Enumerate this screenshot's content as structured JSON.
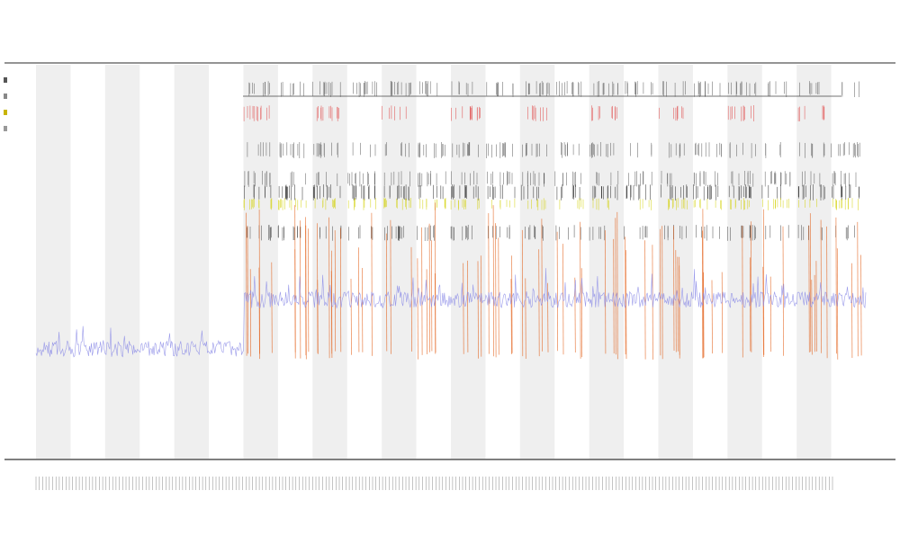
{
  "chart_data": {
    "type": "line",
    "title": "",
    "subtitle_lines": [
      "",
      ""
    ],
    "xlabel": "",
    "ylabel": "",
    "grid": false,
    "legend_position": "top-left",
    "legend": [
      {
        "label": "",
        "color": "#555555"
      },
      {
        "label": "",
        "color": "#888888"
      },
      {
        "label": "",
        "color": "#c8b400"
      },
      {
        "label": "",
        "color": "#999999"
      }
    ],
    "bands": {
      "count": 24,
      "shaded_every_other": true,
      "shade_color": "#efefef",
      "shaded_indices": [
        0,
        2,
        4,
        6,
        8,
        10,
        12,
        14,
        16,
        18,
        20,
        22
      ]
    },
    "series": [
      {
        "name": "",
        "kind": "baseline",
        "color": "#8a8ae6",
        "segments": [
          {
            "from_band": 0,
            "to_band": 6,
            "level": 0.18
          },
          {
            "from_band": 6,
            "to_band": 24,
            "level": 0.26
          }
        ]
      },
      {
        "name": "",
        "kind": "event-spikes",
        "color": "#e25a10",
        "active_bands": [
          6,
          7,
          8,
          9,
          10,
          11,
          12,
          13,
          14,
          15,
          16,
          17,
          18,
          19,
          20,
          21,
          22,
          23
        ]
      },
      {
        "name": "",
        "kind": "event-ticks",
        "color": "#555555",
        "active_bands": [
          6,
          7,
          8,
          9,
          10,
          11,
          12,
          13,
          14,
          15,
          16,
          17,
          18,
          19,
          20,
          21,
          22,
          23
        ]
      },
      {
        "name": "",
        "kind": "event-ticks",
        "color": "#d2d000",
        "active_bands": [
          6,
          7,
          8,
          9,
          10,
          11,
          12,
          13,
          14,
          15,
          16,
          17,
          18,
          19,
          20,
          21,
          22,
          23
        ]
      },
      {
        "name": "",
        "kind": "event-ticks",
        "color": "#e04040",
        "active_bands": [
          6,
          8,
          10,
          12,
          14,
          16,
          18,
          20,
          22
        ]
      }
    ],
    "rows": [
      {
        "color": "#555555",
        "kind": "ticks"
      },
      {
        "color": "#e04040",
        "kind": "ticks"
      },
      {
        "color": "#555555",
        "kind": "ticks"
      },
      {
        "color": "#555555",
        "kind": "ticks"
      },
      {
        "color": "#222222",
        "kind": "ticks"
      },
      {
        "color": "#d2d000",
        "kind": "ticks"
      },
      {
        "color": "#444444",
        "kind": "ticks"
      }
    ],
    "xtick_count": 240
  }
}
